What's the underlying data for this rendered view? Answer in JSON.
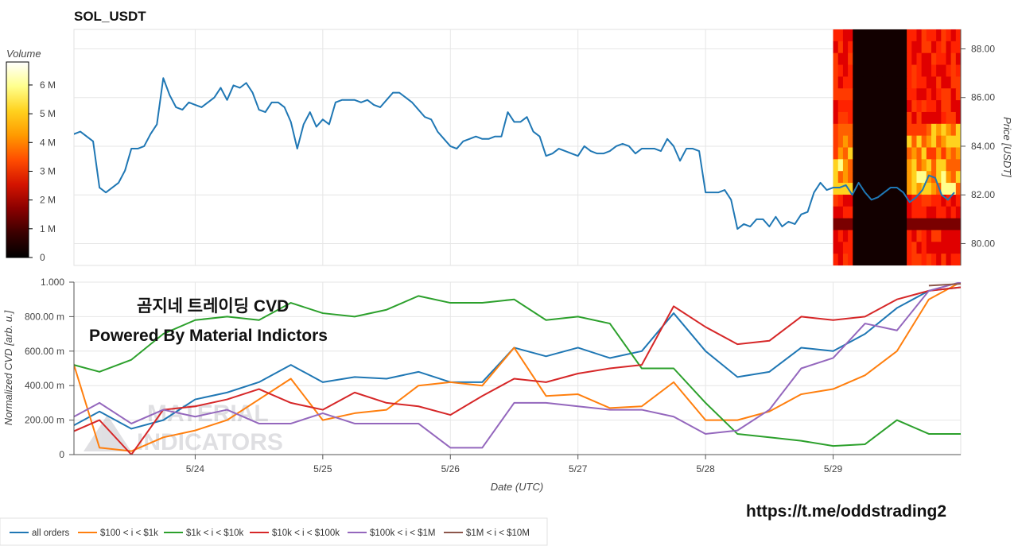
{
  "title": "SOL_USDT",
  "colorbar": {
    "label": "Volume",
    "ticks": [
      "0",
      "1 M",
      "2 M",
      "3 M",
      "4 M",
      "5 M",
      "6 M"
    ],
    "tick_values": [
      0,
      1000000,
      2000000,
      3000000,
      4000000,
      5000000,
      6000000
    ],
    "range": [
      0,
      6800000
    ],
    "colors": [
      "#000000",
      "#3a0000",
      "#8a0000",
      "#d41400",
      "#ff4d00",
      "#ff9a00",
      "#ffd21e",
      "#ffff8c",
      "#ffffff"
    ]
  },
  "watermark": {
    "line1": "곰지네 트레이딩 CVD",
    "line2": "Powered By Material Indictors",
    "logo_line1": "MATERIAL",
    "logo_line2": "INDICATORS"
  },
  "footer_url": "https://t.me/oddstrading2",
  "x_axis": {
    "label": "Date (UTC)",
    "ticks": [
      "5/24",
      "5/25",
      "5/26",
      "5/27",
      "5/28",
      "5/29"
    ],
    "tick_positions": [
      24,
      25,
      26,
      27,
      28,
      29
    ],
    "range": [
      23.05,
      30.0
    ]
  },
  "colors": {
    "price": "#1f77b4",
    "all_orders": "#1f77b4",
    "b100_1k": "#ff7f0e",
    "b1k_10k": "#2ca02c",
    "b10k_100k": "#d62728",
    "b100k_1m": "#9467bd",
    "b1m_10m": "#8c564b",
    "grid": "#e6e6e6"
  },
  "chart_data": [
    {
      "type": "line",
      "title": "SOL_USDT",
      "ylabel": "Price [USDT]",
      "ylim": [
        79.1,
        88.8
      ],
      "yticks": [
        80,
        82,
        84,
        86,
        88
      ],
      "ytick_labels": [
        "80.00",
        "82.00",
        "84.00",
        "86.00",
        "88.00"
      ],
      "series": [
        {
          "values_x": [
            23.0,
            23.05,
            23.1,
            23.15,
            23.2,
            23.25,
            23.3,
            23.35,
            23.4,
            23.45,
            23.5,
            23.55,
            23.6,
            23.65,
            23.7,
            23.75,
            23.8,
            23.85,
            23.9,
            23.95,
            24.0,
            24.05,
            24.1,
            24.15,
            24.2,
            24.25,
            24.3,
            24.35,
            24.4,
            24.45,
            24.5,
            24.55,
            24.6,
            24.65,
            24.7,
            24.75,
            24.8,
            24.85,
            24.9,
            24.95,
            25.0,
            25.05,
            25.1,
            25.15,
            25.2,
            25.25,
            25.3,
            25.35,
            25.4,
            25.45,
            25.5,
            25.55,
            25.6,
            25.65,
            25.7,
            25.75,
            25.8,
            25.85,
            25.9,
            25.95,
            26.0,
            26.05,
            26.1,
            26.15,
            26.2,
            26.25,
            26.3,
            26.35,
            26.4,
            26.45,
            26.5,
            26.55,
            26.6,
            26.65,
            26.7,
            26.75,
            26.8,
            26.85,
            26.9,
            26.95,
            27.0,
            27.05,
            27.1,
            27.15,
            27.2,
            27.25,
            27.3,
            27.35,
            27.4,
            27.45,
            27.5,
            27.55,
            27.6,
            27.65,
            27.7,
            27.75,
            27.8,
            27.85,
            27.9,
            27.95,
            28.0,
            28.05,
            28.1,
            28.15,
            28.2,
            28.25,
            28.3,
            28.35,
            28.4,
            28.45,
            28.5,
            28.55,
            28.6,
            28.65,
            28.7,
            28.75,
            28.8,
            28.85,
            28.9,
            28.95,
            29.0,
            29.05,
            29.1,
            29.15,
            29.2,
            29.25,
            29.3,
            29.35,
            29.4,
            29.45,
            29.5,
            29.55,
            29.6,
            29.65,
            29.7,
            29.75,
            29.8,
            29.85,
            29.9,
            29.95
          ],
          "values": [
            84.5,
            84.5,
            84.6,
            84.4,
            84.2,
            82.3,
            82.1,
            82.3,
            82.5,
            83.0,
            83.9,
            83.9,
            84.0,
            84.5,
            84.9,
            86.8,
            86.1,
            85.6,
            85.5,
            85.8,
            85.7,
            85.6,
            85.8,
            86.0,
            86.4,
            85.9,
            86.5,
            86.4,
            86.6,
            86.2,
            85.5,
            85.4,
            85.8,
            85.8,
            85.6,
            85.0,
            83.9,
            84.9,
            85.4,
            84.8,
            85.1,
            84.9,
            85.8,
            85.9,
            85.9,
            85.9,
            85.8,
            85.9,
            85.7,
            85.6,
            85.9,
            86.2,
            86.2,
            86.0,
            85.8,
            85.5,
            85.2,
            85.1,
            84.6,
            84.3,
            84.0,
            83.9,
            84.2,
            84.3,
            84.4,
            84.3,
            84.3,
            84.4,
            84.4,
            85.4,
            85.0,
            85.0,
            85.2,
            84.6,
            84.4,
            83.6,
            83.7,
            83.9,
            83.8,
            83.7,
            83.6,
            84.0,
            83.8,
            83.7,
            83.7,
            83.8,
            84.0,
            84.1,
            84.0,
            83.7,
            83.9,
            83.9,
            83.9,
            83.8,
            84.3,
            84.0,
            83.4,
            83.9,
            83.9,
            83.8,
            82.1,
            82.1,
            82.1,
            82.2,
            81.8,
            80.6,
            80.8,
            80.7,
            81.0,
            81.0,
            80.7,
            81.1,
            80.7,
            80.9,
            80.8,
            81.2,
            81.3,
            82.1,
            82.5,
            82.2,
            82.3,
            82.3,
            82.4,
            82.0,
            82.5,
            82.1,
            81.8,
            81.9,
            82.1,
            82.3,
            82.3,
            82.1,
            81.7,
            81.9,
            82.2,
            82.8,
            82.7,
            82.0,
            81.8,
            82.1
          ]
        }
      ]
    },
    {
      "type": "heatmap",
      "description_of": "volume profile",
      "x_range": [
        29.0,
        30.0
      ],
      "y_range": [
        79.1,
        88.8
      ]
    },
    {
      "type": "line",
      "ylabel": "Normalized CVD [arb. u.]",
      "ylim": [
        0,
        1.0
      ],
      "yticks": [
        0,
        0.2,
        0.4,
        0.6,
        0.8,
        1.0
      ],
      "ytick_labels": [
        "0",
        "200.00 m",
        "400.00 m",
        "600.00 m",
        "800.00 m",
        "1.000"
      ],
      "x": [
        23.0,
        23.25,
        23.5,
        23.75,
        24.0,
        24.25,
        24.5,
        24.75,
        25.0,
        25.25,
        25.5,
        25.75,
        26.0,
        26.25,
        26.5,
        26.75,
        27.0,
        27.25,
        27.5,
        27.75,
        28.0,
        28.25,
        28.5,
        28.75,
        29.0,
        29.25,
        29.5,
        29.75,
        30.0
      ],
      "series": [
        {
          "name": "all orders",
          "color": "#1f77b4",
          "values": [
            0.15,
            0.25,
            0.15,
            0.2,
            0.32,
            0.36,
            0.42,
            0.52,
            0.42,
            0.45,
            0.44,
            0.48,
            0.42,
            0.42,
            0.62,
            0.57,
            0.62,
            0.56,
            0.6,
            0.82,
            0.6,
            0.45,
            0.48,
            0.62,
            0.6,
            0.7,
            0.85,
            0.95,
            0.97
          ]
        },
        {
          "name": "$100 < i < $1k",
          "color": "#ff7f0e",
          "values": [
            0.64,
            0.04,
            0.02,
            0.1,
            0.14,
            0.2,
            0.32,
            0.44,
            0.2,
            0.24,
            0.26,
            0.4,
            0.42,
            0.4,
            0.62,
            0.34,
            0.35,
            0.27,
            0.28,
            0.42,
            0.2,
            0.2,
            0.25,
            0.35,
            0.38,
            0.46,
            0.6,
            0.9,
            1.0
          ]
        },
        {
          "name": "$1k < i < $10k",
          "color": "#2ca02c",
          "values": [
            0.53,
            0.48,
            0.55,
            0.7,
            0.78,
            0.8,
            0.78,
            0.88,
            0.82,
            0.8,
            0.84,
            0.92,
            0.88,
            0.88,
            0.9,
            0.78,
            0.8,
            0.76,
            0.5,
            0.5,
            0.3,
            0.12,
            0.1,
            0.08,
            0.05,
            0.06,
            0.2,
            0.12,
            0.12
          ]
        },
        {
          "name": "$10k < i < $100k",
          "color": "#d62728",
          "values": [
            0.12,
            0.2,
            0.0,
            0.26,
            0.28,
            0.32,
            0.38,
            0.3,
            0.26,
            0.36,
            0.3,
            0.28,
            0.23,
            0.34,
            0.44,
            0.42,
            0.47,
            0.5,
            0.52,
            0.86,
            0.74,
            0.64,
            0.66,
            0.8,
            0.78,
            0.8,
            0.9,
            0.95,
            0.97
          ]
        },
        {
          "name": "$100k < i < $1M",
          "color": "#9467bd",
          "values": [
            0.2,
            0.3,
            0.18,
            0.26,
            0.22,
            0.26,
            0.18,
            0.18,
            0.24,
            0.18,
            0.18,
            0.18,
            0.04,
            0.04,
            0.3,
            0.3,
            0.28,
            0.26,
            0.26,
            0.22,
            0.12,
            0.14,
            0.26,
            0.5,
            0.56,
            0.76,
            0.72,
            0.95,
            1.0
          ]
        },
        {
          "name": "$1M < i < $10M",
          "color": "#8c564b",
          "values": [
            null,
            null,
            null,
            null,
            null,
            null,
            null,
            null,
            null,
            null,
            null,
            null,
            null,
            null,
            null,
            null,
            null,
            null,
            null,
            null,
            null,
            null,
            null,
            null,
            null,
            null,
            null,
            0.98,
            0.99
          ]
        }
      ]
    }
  ],
  "legend": [
    {
      "label": "all orders",
      "color": "#1f77b4"
    },
    {
      "label": "$100 < i < $1k",
      "color": "#ff7f0e"
    },
    {
      "label": "$1k < i < $10k",
      "color": "#2ca02c"
    },
    {
      "label": "$10k < i < $100k",
      "color": "#d62728"
    },
    {
      "label": "$100k < i < $1M",
      "color": "#9467bd"
    },
    {
      "label": "$1M < i < $10M",
      "color": "#8c564b"
    }
  ]
}
